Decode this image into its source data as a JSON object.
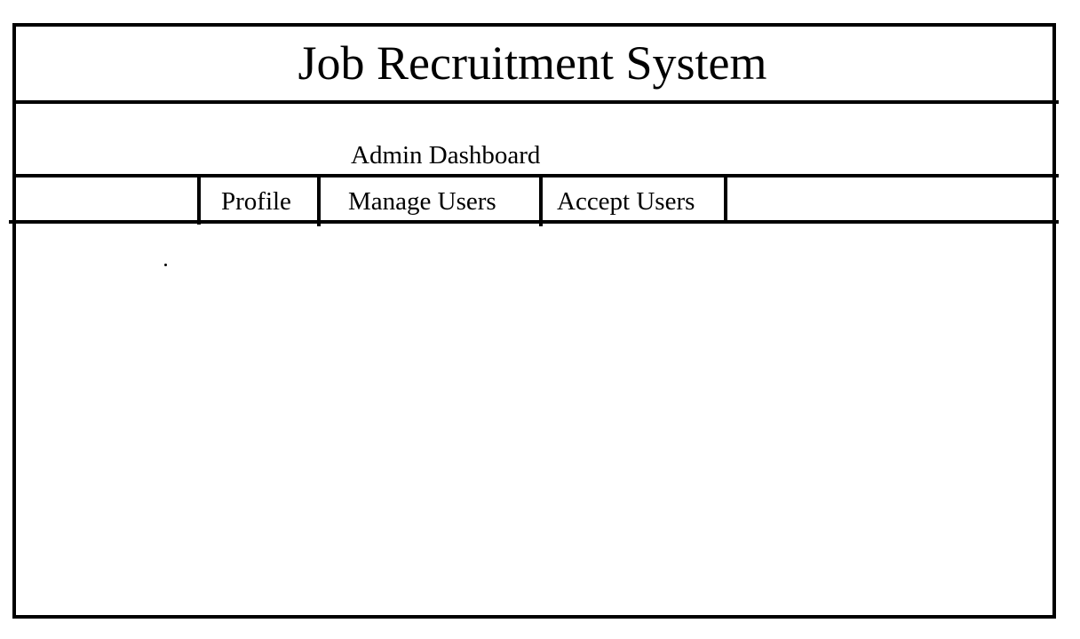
{
  "header": {
    "title": "Job Recruitment System"
  },
  "subheader": {
    "title": "Admin Dashboard"
  },
  "nav": {
    "tabs": [
      {
        "label": "Profile"
      },
      {
        "label": "Manage Users"
      },
      {
        "label": "Accept Users"
      }
    ]
  },
  "colors": {
    "background": "#ffffff",
    "ink": "#000000"
  }
}
